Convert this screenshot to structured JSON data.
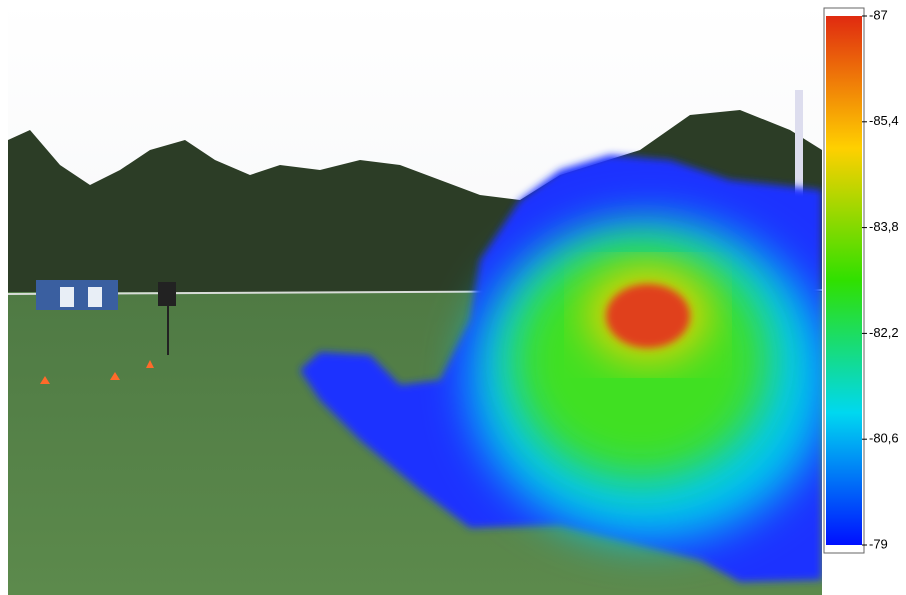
{
  "chart_data": {
    "type": "heatmap",
    "clim": [
      -87,
      -79
    ],
    "colors": [
      "#e02a10",
      "#ffd000",
      "#30e000",
      "#00d8f0",
      "#0010ff"
    ],
    "colorbar_ticks": [
      -87,
      {
        "value": -85.4,
        "label": "-85,4"
      },
      {
        "value": -83.8,
        "label": "-83,8"
      },
      {
        "value": -82.2,
        "label": "-82,2"
      },
      {
        "value": -80.6,
        "label": "-80,6"
      },
      -79
    ]
  }
}
